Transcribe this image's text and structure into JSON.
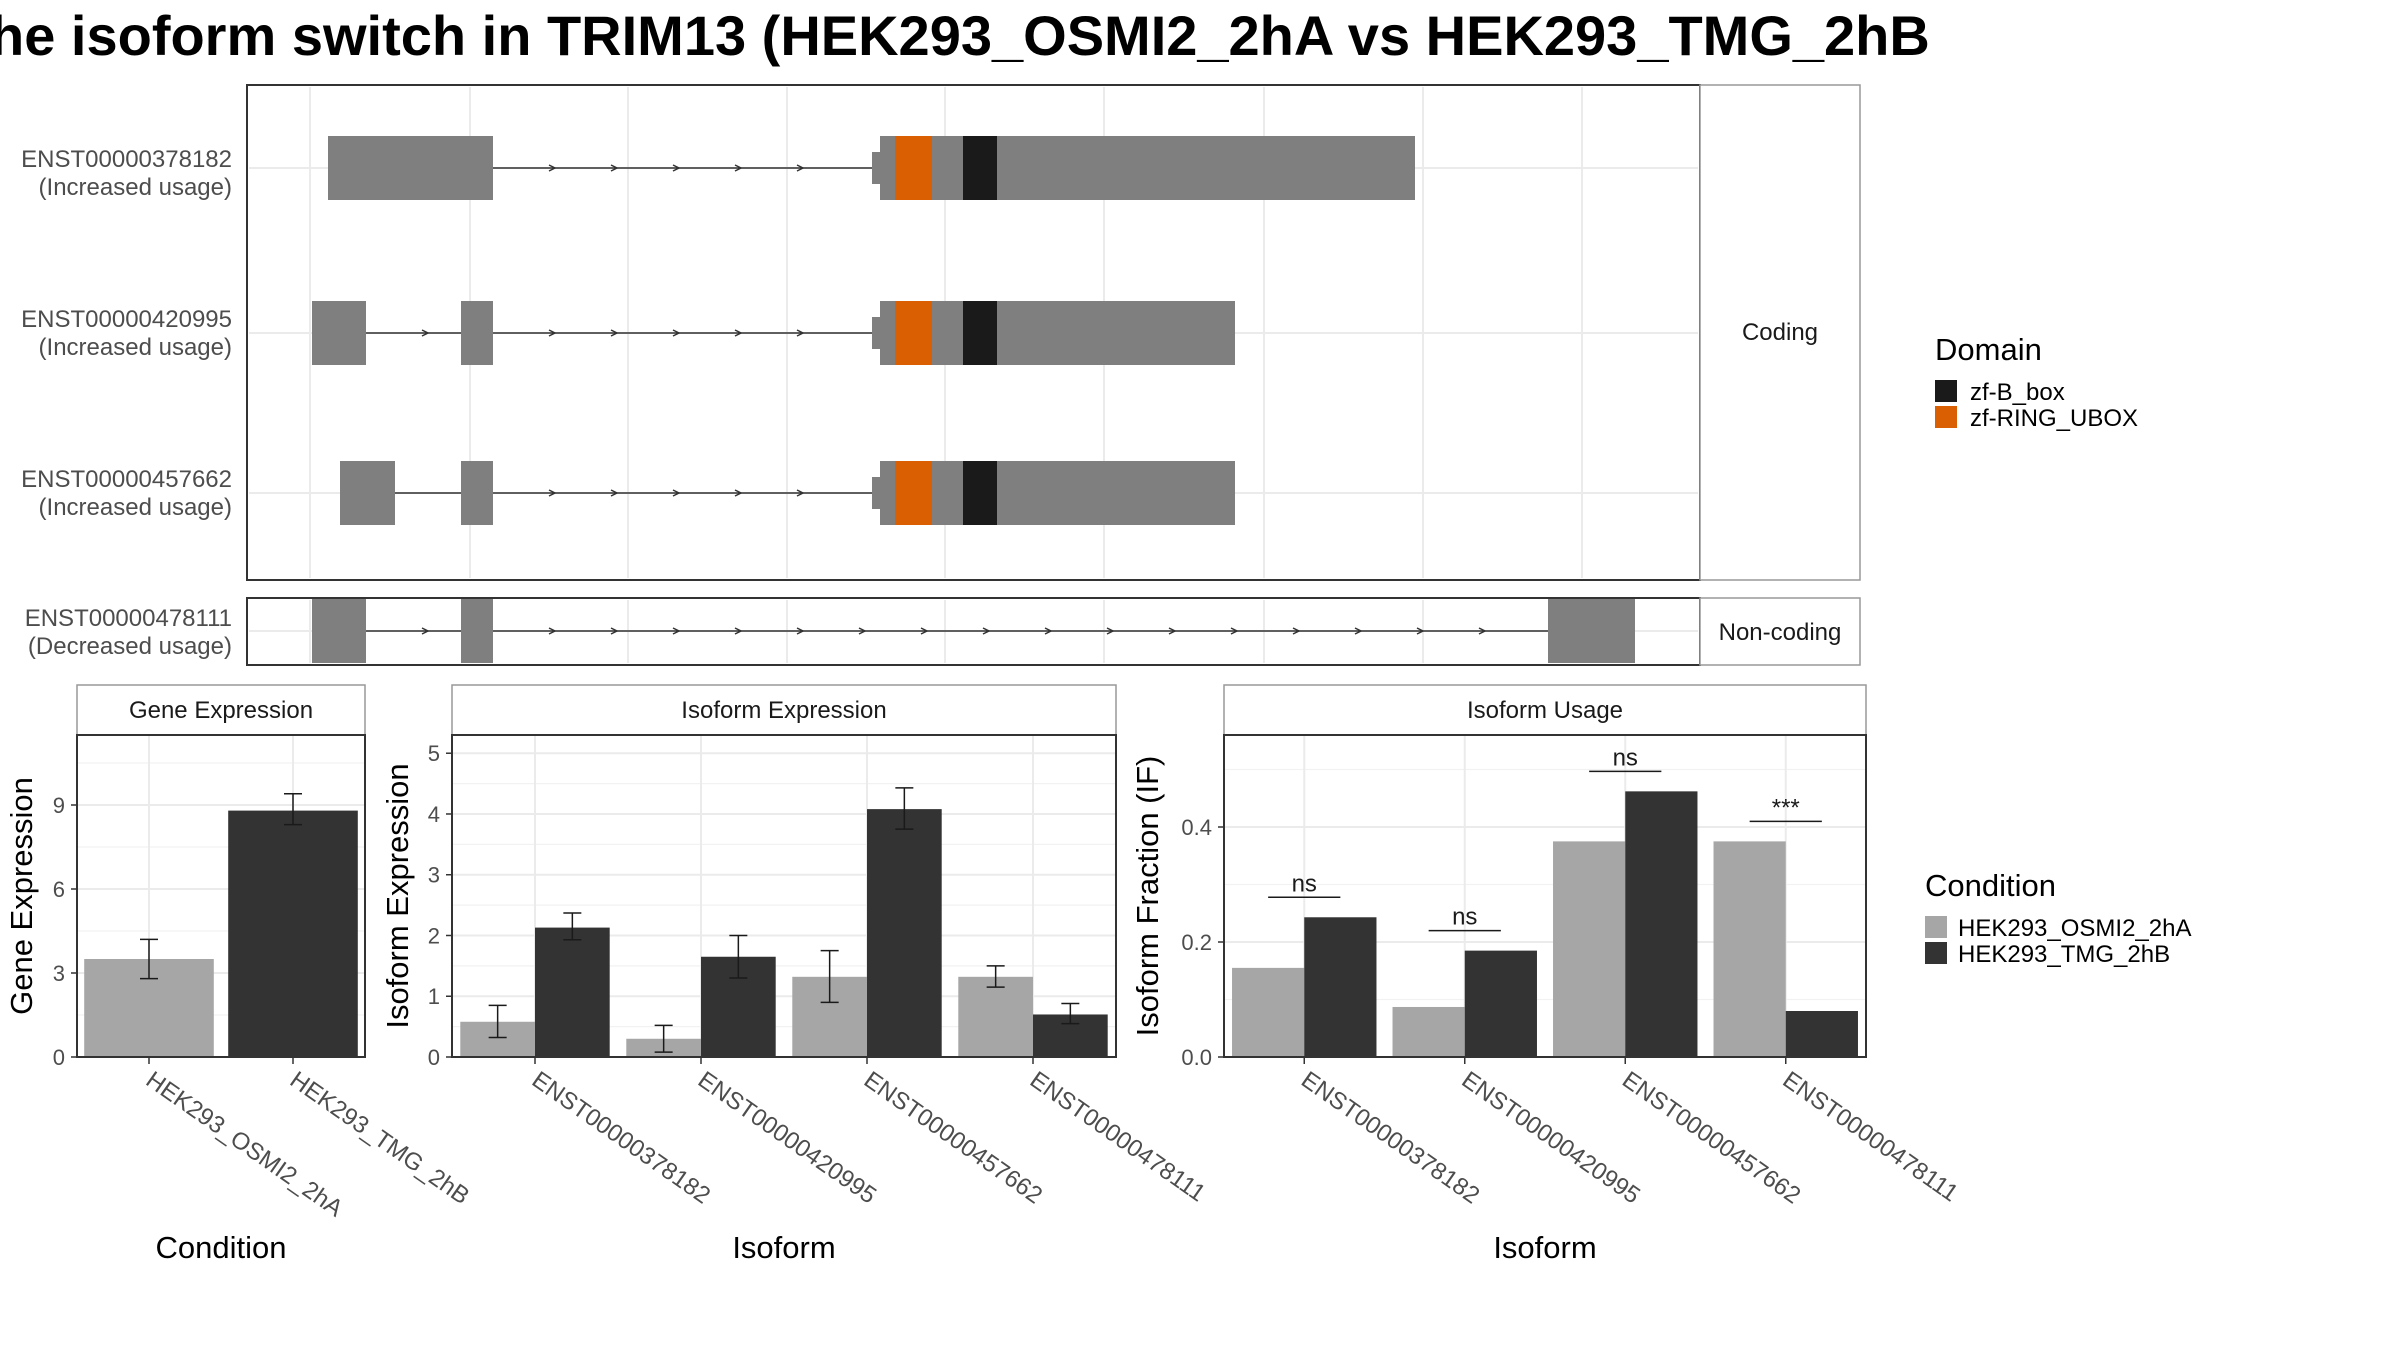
{
  "title": "he isoform switch in TRIM13 (HEK293_OSMI2_2hA vs HEK293_TMG_2hB",
  "colors": {
    "exon": "#7f7f7f",
    "zf_b_box": "#1a1a1a",
    "zf_ring_ubox": "#d95f02",
    "cond_a": "#a6a6a6",
    "cond_b": "#333333"
  },
  "structure": {
    "coding_panel_label": "Coding",
    "noncoding_panel_label": "Non-coding",
    "rows": [
      {
        "id": "ENST00000378182",
        "usage": "(Increased usage)",
        "panel": "coding"
      },
      {
        "id": "ENST00000420995",
        "usage": "(Increased usage)",
        "panel": "coding"
      },
      {
        "id": "ENST00000457662",
        "usage": "(Increased usage)",
        "panel": "coding"
      },
      {
        "id": "ENST00000478111",
        "usage": "(Decreased usage)",
        "panel": "noncoding"
      }
    ]
  },
  "legends": {
    "domain": {
      "title": "Domain",
      "items": [
        {
          "label": "zf-B_box",
          "color": "#1a1a1a"
        },
        {
          "label": "zf-RING_UBOX",
          "color": "#d95f02"
        }
      ]
    },
    "condition": {
      "title": "Condition",
      "items": [
        {
          "label": "HEK293_OSMI2_2hA",
          "color": "#a6a6a6"
        },
        {
          "label": "HEK293_TMG_2hB",
          "color": "#333333"
        }
      ]
    }
  },
  "chart_data": [
    {
      "type": "bar",
      "title": "Gene Expression",
      "xlabel": "Condition",
      "ylabel": "Gene Expression",
      "categories": [
        "HEK293_OSMI2_2hA",
        "HEK293_TMG_2hB"
      ],
      "values": [
        3.5,
        8.8
      ],
      "err_low": [
        2.8,
        8.3
      ],
      "err_high": [
        4.2,
        9.4
      ],
      "ylim": [
        0,
        11.5
      ],
      "yticks": [
        "0",
        "3",
        "6",
        "9"
      ],
      "grid": true
    },
    {
      "type": "bar",
      "title": "Isoform Expression",
      "xlabel": "Isoform",
      "ylabel": "Isoform Expression",
      "categories": [
        "ENST00000378182",
        "ENST00000420995",
        "ENST00000457662",
        "ENST00000478111"
      ],
      "series": [
        {
          "name": "HEK293_OSMI2_2hA",
          "values": [
            0.58,
            0.3,
            1.32,
            1.32
          ],
          "err_low": [
            0.32,
            0.08,
            0.9,
            1.15
          ],
          "err_high": [
            0.85,
            0.52,
            1.75,
            1.5
          ]
        },
        {
          "name": "HEK293_TMG_2hB",
          "values": [
            2.13,
            1.65,
            4.08,
            0.7
          ],
          "err_low": [
            1.93,
            1.3,
            3.75,
            0.55
          ],
          "err_high": [
            2.37,
            2.0,
            4.43,
            0.88
          ]
        }
      ],
      "ylim": [
        0,
        5.3
      ],
      "yticks": [
        "0",
        "1",
        "2",
        "3",
        "4",
        "5"
      ],
      "grid": true
    },
    {
      "type": "bar",
      "title": "Isoform Usage",
      "xlabel": "Isoform",
      "ylabel": "Isoform Fraction (IF)",
      "categories": [
        "ENST00000378182",
        "ENST00000420995",
        "ENST00000457662",
        "ENST00000478111"
      ],
      "series": [
        {
          "name": "HEK293_OSMI2_2hA",
          "values": [
            0.155,
            0.087,
            0.375,
            0.375
          ]
        },
        {
          "name": "HEK293_TMG_2hB",
          "values": [
            0.243,
            0.185,
            0.462,
            0.08
          ]
        }
      ],
      "significance": [
        "ns",
        "ns",
        "ns",
        "***"
      ],
      "ylim": [
        0,
        0.56
      ],
      "yticks": [
        "0.0",
        "0.2",
        "0.4"
      ],
      "grid": true
    }
  ]
}
